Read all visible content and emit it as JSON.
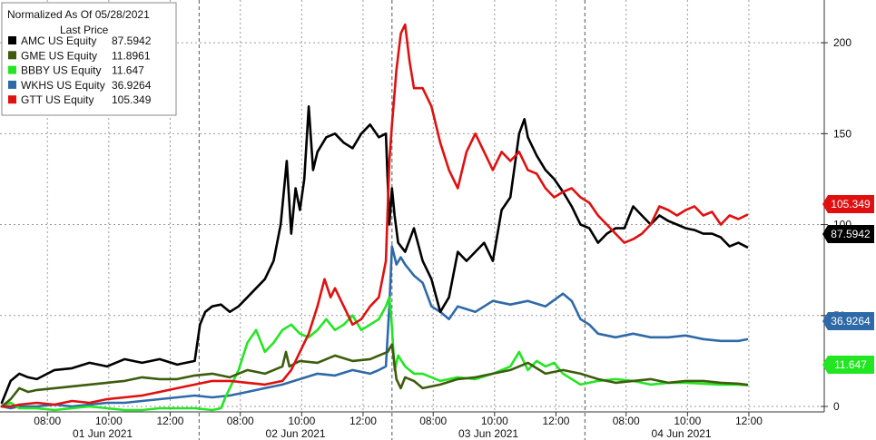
{
  "chart_data": {
    "type": "line",
    "title": "Normalized As Of 05/28/2021",
    "subtitle": "Last Price",
    "legend_position": "top-left",
    "y_axis_side": "right",
    "ylim": [
      -3,
      222
    ],
    "yticks": [
      0,
      50,
      100,
      150,
      200
    ],
    "grid": true,
    "xlim": [
      0,
      880
    ],
    "x_tick_labels": [
      {
        "t": 52,
        "label": "08:00"
      },
      {
        "t": 122,
        "label": "10:00"
      },
      {
        "t": 192,
        "label": "12:00"
      },
      {
        "t": 272,
        "label": "08:00"
      },
      {
        "t": 342,
        "label": "10:00"
      },
      {
        "t": 412,
        "label": "12:00"
      },
      {
        "t": 492,
        "label": "08:00"
      },
      {
        "t": 562,
        "label": "10:00"
      },
      {
        "t": 632,
        "label": "12:00"
      },
      {
        "t": 712,
        "label": "08:00"
      },
      {
        "t": 782,
        "label": "10:00"
      },
      {
        "t": 852,
        "label": "12:00"
      }
    ],
    "day_separators": [
      225,
      445,
      665
    ],
    "day_labels": [
      {
        "t": 115,
        "label": "01 Jun 2021"
      },
      {
        "t": 335,
        "label": "02 Jun 2021"
      },
      {
        "t": 555,
        "label": "03 Jun 2021"
      },
      {
        "t": 775,
        "label": "04 Jun 2021"
      }
    ],
    "series": [
      {
        "name": "AMC US Equity",
        "last": "87.5942",
        "color": "#000000",
        "x": [
          0,
          10,
          20,
          30,
          40,
          60,
          80,
          100,
          120,
          140,
          160,
          180,
          200,
          220,
          226,
          232,
          240,
          250,
          260,
          270,
          280,
          290,
          300,
          310,
          318,
          325,
          330,
          335,
          340,
          345,
          350,
          355,
          360,
          370,
          380,
          390,
          400,
          410,
          420,
          430,
          438,
          442,
          445,
          448,
          452,
          460,
          470,
          480,
          490,
          500,
          510,
          520,
          530,
          540,
          550,
          560,
          570,
          580,
          590,
          596,
          600,
          610,
          620,
          630,
          640,
          650,
          660,
          670,
          680,
          690,
          700,
          710,
          720,
          730,
          740,
          750,
          760,
          770,
          780,
          790,
          800,
          810,
          820,
          830,
          840,
          850
        ],
        "y": [
          2,
          14,
          18,
          16,
          15,
          20,
          21,
          24,
          22,
          26,
          24,
          26,
          23,
          25,
          45,
          52,
          55,
          56,
          52,
          55,
          60,
          65,
          70,
          80,
          100,
          135,
          95,
          120,
          108,
          125,
          165,
          130,
          140,
          148,
          150,
          145,
          142,
          150,
          155,
          148,
          150,
          100,
          120,
          105,
          90,
          85,
          98,
          80,
          70,
          52,
          60,
          85,
          80,
          85,
          90,
          80,
          108,
          115,
          150,
          158,
          148,
          138,
          130,
          125,
          118,
          110,
          100,
          98,
          90,
          95,
          98,
          98,
          110,
          105,
          100,
          105,
          102,
          100,
          98,
          97,
          95,
          95,
          93,
          88,
          90,
          87.5942
        ]
      },
      {
        "name": "GME US Equity",
        "last": "11.8961",
        "color": "#3d5c0d",
        "x": [
          0,
          10,
          20,
          30,
          40,
          60,
          80,
          100,
          120,
          140,
          160,
          180,
          200,
          220,
          240,
          260,
          280,
          300,
          310,
          320,
          324,
          328,
          340,
          360,
          380,
          400,
          420,
          430,
          440,
          445,
          450,
          455,
          460,
          470,
          480,
          500,
          520,
          540,
          560,
          580,
          600,
          620,
          640,
          660,
          680,
          700,
          720,
          740,
          760,
          780,
          800,
          820,
          840,
          850
        ],
        "y": [
          0,
          4,
          10,
          8,
          9,
          10,
          11,
          12,
          13,
          14,
          16,
          15,
          15,
          17,
          18,
          16,
          20,
          18,
          20,
          22,
          30,
          22,
          25,
          24,
          28,
          25,
          26,
          28,
          30,
          34,
          15,
          10,
          16,
          14,
          10,
          12,
          15,
          16,
          18,
          20,
          24,
          18,
          20,
          18,
          15,
          13,
          14,
          15,
          13,
          14,
          14,
          13,
          12.5,
          11.8961
        ]
      },
      {
        "name": "BBBY US Equity",
        "last": "11.647",
        "color": "#22e622",
        "x": [
          0,
          10,
          20,
          40,
          60,
          80,
          100,
          120,
          140,
          160,
          180,
          200,
          220,
          240,
          250,
          255,
          260,
          270,
          280,
          290,
          300,
          310,
          320,
          330,
          340,
          350,
          360,
          370,
          380,
          390,
          400,
          410,
          420,
          430,
          438,
          442,
          444,
          448,
          452,
          460,
          470,
          480,
          500,
          520,
          540,
          560,
          580,
          590,
          600,
          610,
          620,
          630,
          640,
          660,
          680,
          700,
          720,
          740,
          760,
          780,
          800,
          820,
          840,
          850
        ],
        "y": [
          0,
          2,
          -1,
          -1,
          -2,
          -1,
          0,
          -1,
          -2,
          -2,
          -1,
          -1,
          -1,
          -2,
          -1,
          5,
          10,
          20,
          35,
          42,
          30,
          35,
          42,
          45,
          40,
          38,
          42,
          48,
          42,
          45,
          50,
          42,
          45,
          48,
          55,
          60,
          50,
          20,
          28,
          22,
          18,
          18,
          14,
          16,
          15,
          18,
          22,
          30,
          20,
          25,
          22,
          24,
          18,
          12,
          14,
          15,
          14,
          12,
          13,
          13,
          12.5,
          12,
          12,
          11.647
        ]
      },
      {
        "name": "WKHS US Equity",
        "last": "36.9264",
        "color": "#2f6aa8",
        "x": [
          0,
          10,
          20,
          40,
          60,
          80,
          100,
          120,
          140,
          160,
          180,
          200,
          220,
          240,
          260,
          280,
          300,
          320,
          340,
          360,
          380,
          400,
          420,
          430,
          438,
          442,
          445,
          450,
          455,
          460,
          470,
          480,
          490,
          500,
          510,
          520,
          540,
          560,
          580,
          600,
          620,
          640,
          650,
          660,
          670,
          680,
          700,
          720,
          740,
          760,
          780,
          800,
          820,
          840,
          850
        ],
        "y": [
          0,
          -1,
          0,
          0,
          1,
          0,
          1,
          2,
          2,
          3,
          4,
          5,
          6,
          5,
          6,
          8,
          10,
          12,
          15,
          18,
          17,
          20,
          18,
          20,
          22,
          55,
          88,
          78,
          82,
          78,
          72,
          68,
          55,
          52,
          48,
          55,
          52,
          58,
          56,
          58,
          55,
          62,
          58,
          48,
          45,
          40,
          38,
          40,
          38,
          38,
          39,
          37,
          36,
          36,
          36.9264
        ]
      },
      {
        "name": "GTT US Equity",
        "last": "105.349",
        "color": "#e01010",
        "x": [
          0,
          10,
          20,
          40,
          60,
          80,
          100,
          120,
          140,
          160,
          180,
          200,
          220,
          240,
          260,
          280,
          300,
          320,
          330,
          340,
          350,
          360,
          368,
          375,
          380,
          390,
          400,
          410,
          420,
          430,
          438,
          442,
          445,
          450,
          455,
          460,
          465,
          470,
          480,
          490,
          500,
          510,
          520,
          530,
          540,
          550,
          560,
          570,
          580,
          590,
          600,
          610,
          620,
          630,
          640,
          650,
          660,
          670,
          680,
          690,
          700,
          710,
          720,
          730,
          740,
          750,
          760,
          770,
          780,
          790,
          800,
          810,
          820,
          830,
          840,
          850
        ],
        "y": [
          0,
          0,
          1,
          2,
          1,
          3,
          2,
          4,
          5,
          6,
          8,
          10,
          12,
          14,
          14,
          13,
          12,
          14,
          20,
          30,
          40,
          55,
          70,
          60,
          65,
          55,
          45,
          48,
          55,
          60,
          80,
          135,
          155,
          185,
          205,
          210,
          190,
          175,
          175,
          165,
          145,
          130,
          120,
          140,
          150,
          140,
          130,
          140,
          135,
          140,
          130,
          128,
          120,
          115,
          118,
          120,
          115,
          112,
          105,
          100,
          95,
          90,
          92,
          95,
          100,
          110,
          108,
          105,
          108,
          110,
          105,
          107,
          100,
          105,
          103,
          105.349
        ]
      }
    ]
  }
}
